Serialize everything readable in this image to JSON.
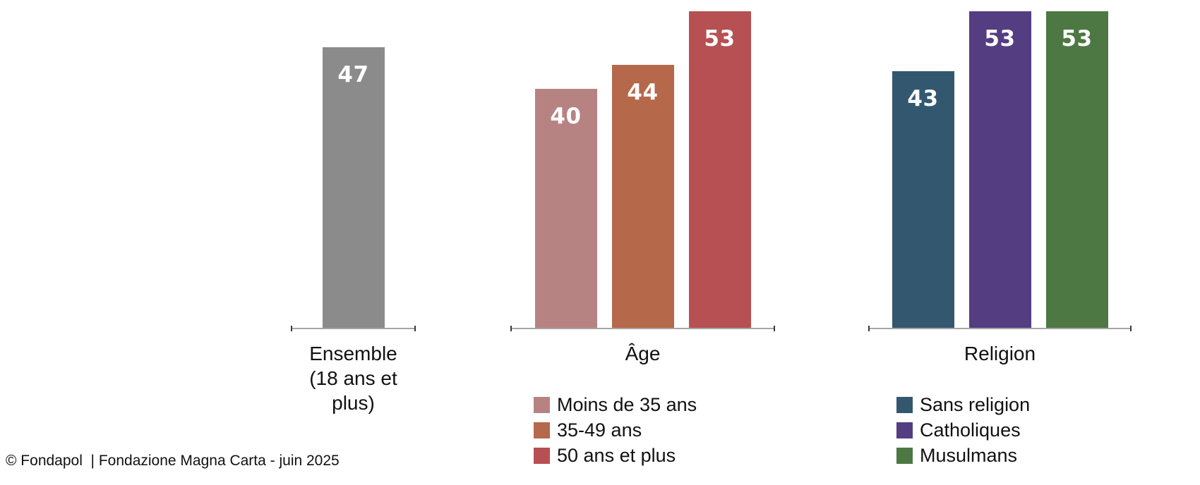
{
  "footer": {
    "credit": "© Fondapol  | Fondazione Magna Carta - juin 2025"
  },
  "chart_data": {
    "type": "bar",
    "title": "",
    "xlabel": "",
    "ylabel": "",
    "ylim": [
      0,
      55
    ],
    "grid": false,
    "legend_position": "below",
    "groups": [
      {
        "id": "ensemble",
        "axis_label_lines": [
          "Ensemble",
          "(18 ans et plus)"
        ],
        "bars": [
          {
            "label": "Ensemble (18 ans et plus)",
            "value": 47,
            "color": "#8b8b8b"
          }
        ],
        "legend": []
      },
      {
        "id": "age",
        "axis_label_lines": [
          "Âge"
        ],
        "bars": [
          {
            "label": "Moins de 35 ans",
            "value": 40,
            "color": "#b78382"
          },
          {
            "label": "35-49 ans",
            "value": 44,
            "color": "#b5684a"
          },
          {
            "label": "50 ans et plus",
            "value": 53,
            "color": "#b65052"
          }
        ],
        "legend": [
          {
            "label": "Moins de 35 ans",
            "color": "#b78382"
          },
          {
            "label": "35-49 ans",
            "color": "#b5684a"
          },
          {
            "label": "50 ans et plus",
            "color": "#b65052"
          }
        ]
      },
      {
        "id": "religion",
        "axis_label_lines": [
          "Religion"
        ],
        "bars": [
          {
            "label": "Sans religion",
            "value": 43,
            "color": "#33576f"
          },
          {
            "label": "Catholiques",
            "value": 53,
            "color": "#543d80"
          },
          {
            "label": "Musulmans",
            "value": 53,
            "color": "#4d7743"
          }
        ],
        "legend": [
          {
            "label": "Sans religion",
            "color": "#33576f"
          },
          {
            "label": "Catholiques",
            "color": "#543d80"
          },
          {
            "label": "Musulmans",
            "color": "#4d7743"
          }
        ]
      }
    ]
  }
}
